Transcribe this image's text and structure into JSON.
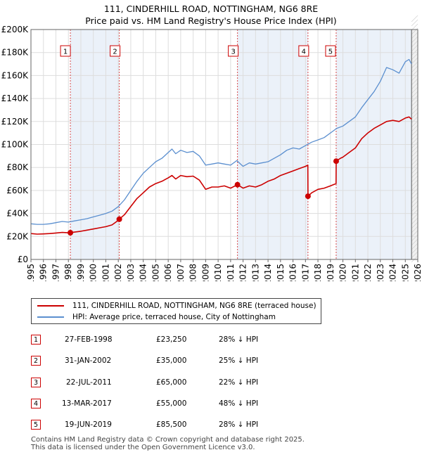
{
  "title_line1": "111, CINDERHILL ROAD, NOTTINGHAM, NG6 8RE",
  "title_line2": "Price paid vs. HM Land Registry's House Price Index (HPI)",
  "chart_data": {
    "type": "line",
    "xlim": [
      1995,
      2026
    ],
    "ylim": [
      0,
      200000
    ],
    "yticks": [
      0,
      20000,
      40000,
      60000,
      80000,
      100000,
      120000,
      140000,
      160000,
      180000,
      200000
    ],
    "ytick_labels": [
      "£0",
      "£20K",
      "£40K",
      "£60K",
      "£80K",
      "£100K",
      "£120K",
      "£140K",
      "£160K",
      "£180K",
      "£200K"
    ],
    "xticks": [
      "1995",
      "1996",
      "1997",
      "1998",
      "1999",
      "2000",
      "2001",
      "2002",
      "2003",
      "2004",
      "2005",
      "2006",
      "2007",
      "2008",
      "2009",
      "2010",
      "2011",
      "2012",
      "2013",
      "2014",
      "2015",
      "2016",
      "2017",
      "2018",
      "2019",
      "2020",
      "2021",
      "2022",
      "2023",
      "2024",
      "2025",
      "2026"
    ],
    "grid": true,
    "shaded_periods": [
      [
        1998.16,
        2002.08
      ],
      [
        2011.55,
        2017.2
      ],
      [
        2019.46,
        2025.5
      ]
    ],
    "series": [
      {
        "name": "HPI: Average price, terraced house, City of Nottingham",
        "color": "#5b8fcf",
        "x": [
          1995,
          1995.5,
          1996,
          1996.5,
          1997,
          1997.5,
          1998,
          1998.5,
          1999,
          1999.5,
          2000,
          2000.5,
          2001,
          2001.5,
          2002,
          2002.5,
          2003,
          2003.5,
          2004,
          2004.5,
          2005,
          2005.5,
          2006,
          2006.3,
          2006.6,
          2007,
          2007.5,
          2008,
          2008.5,
          2009,
          2009.5,
          2010,
          2010.5,
          2011,
          2011.5,
          2012,
          2012.5,
          2013,
          2013.5,
          2014,
          2014.5,
          2015,
          2015.5,
          2016,
          2016.5,
          2017,
          2017.5,
          2018,
          2018.5,
          2019,
          2019.5,
          2020,
          2020.5,
          2021,
          2021.5,
          2022,
          2022.5,
          2023,
          2023.5,
          2024,
          2024.5,
          2025,
          2025.3,
          2025.5
        ],
        "values": [
          31000,
          30500,
          30500,
          31000,
          32000,
          33000,
          32500,
          33500,
          34500,
          35500,
          37000,
          38500,
          40000,
          42000,
          46000,
          52000,
          60000,
          68000,
          75000,
          80000,
          85000,
          88000,
          93000,
          96000,
          92000,
          95000,
          93000,
          94000,
          90000,
          82000,
          83000,
          84000,
          83000,
          82000,
          86000,
          81000,
          84000,
          83000,
          84000,
          85000,
          88000,
          91000,
          95000,
          97000,
          96000,
          99000,
          102000,
          104000,
          106000,
          110000,
          114000,
          116000,
          120000,
          124000,
          132000,
          139000,
          146000,
          155000,
          167000,
          165000,
          162000,
          172000,
          174000,
          170000
        ]
      },
      {
        "name": "111, CINDERHILL ROAD, NOTTINGHAM, NG6 8RE (terraced house)",
        "color": "#cc0000",
        "x": [
          1995,
          1995.5,
          1996,
          1996.5,
          1997,
          1997.5,
          1998,
          1998.16,
          1998.5,
          1999,
          1999.5,
          2000,
          2000.5,
          2001,
          2001.5,
          2002,
          2002.08,
          2002.5,
          2003,
          2003.5,
          2004,
          2004.5,
          2005,
          2005.5,
          2006,
          2006.3,
          2006.6,
          2007,
          2007.5,
          2008,
          2008.5,
          2009,
          2009.5,
          2010,
          2010.5,
          2011,
          2011.55,
          2012,
          2012.5,
          2013,
          2013.5,
          2014,
          2014.5,
          2015,
          2015.5,
          2016,
          2016.5,
          2017,
          2017.19,
          2017.2,
          2017.5,
          2018,
          2018.5,
          2019,
          2019.45,
          2019.46,
          2019.8,
          2020,
          2020.5,
          2021,
          2021.5,
          2022,
          2022.5,
          2023,
          2023.5,
          2024,
          2024.5,
          2025,
          2025.3,
          2025.5
        ],
        "values": [
          22500,
          22000,
          22200,
          22500,
          23000,
          23500,
          23200,
          23250,
          23800,
          24500,
          25500,
          26500,
          27500,
          28500,
          30000,
          34000,
          35000,
          39000,
          46000,
          53000,
          58000,
          63000,
          66000,
          68000,
          71000,
          73000,
          70000,
          73000,
          72000,
          72500,
          69000,
          61000,
          63000,
          63000,
          64000,
          62000,
          65000,
          62000,
          64000,
          63000,
          65000,
          68000,
          70000,
          73000,
          75000,
          77000,
          79000,
          81000,
          82000,
          55000,
          58000,
          61000,
          62000,
          64000,
          66000,
          85500,
          88000,
          89000,
          93000,
          97000,
          105000,
          110000,
          114000,
          117000,
          120000,
          121000,
          120000,
          123000,
          124000,
          122000
        ]
      }
    ],
    "sales": [
      {
        "id": "1",
        "x": 1998.16,
        "value": 23250
      },
      {
        "id": "2",
        "x": 2002.08,
        "value": 35000
      },
      {
        "id": "3",
        "x": 2011.55,
        "value": 65000
      },
      {
        "id": "4",
        "x": 2017.2,
        "value": 55000
      },
      {
        "id": "5",
        "x": 2019.46,
        "value": 85500
      }
    ]
  },
  "legend": {
    "property": "111, CINDERHILL ROAD, NOTTINGHAM, NG6 8RE (terraced house)",
    "hpi": "HPI: Average price, terraced house, City of Nottingham"
  },
  "transactions": [
    {
      "id": "1",
      "date": "27-FEB-1998",
      "price": "£23,250",
      "hpi": "28% ↓ HPI"
    },
    {
      "id": "2",
      "date": "31-JAN-2002",
      "price": "£35,000",
      "hpi": "25% ↓ HPI"
    },
    {
      "id": "3",
      "date": "22-JUL-2011",
      "price": "£65,000",
      "hpi": "22% ↓ HPI"
    },
    {
      "id": "4",
      "date": "13-MAR-2017",
      "price": "£55,000",
      "hpi": "48% ↓ HPI"
    },
    {
      "id": "5",
      "date": "19-JUN-2019",
      "price": "£85,500",
      "hpi": "28% ↓ HPI"
    }
  ],
  "footer_line1": "Contains HM Land Registry data © Crown copyright and database right 2025.",
  "footer_line2": "This data is licensed under the Open Government Licence v3.0."
}
